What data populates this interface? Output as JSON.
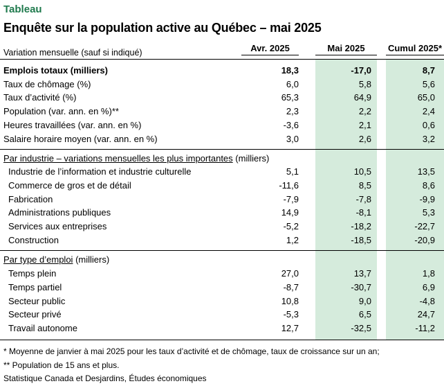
{
  "kicker": "Tableau",
  "title": "Enquête sur la population active au Québec – mai 2025",
  "header": {
    "row_label": "Variation mensuelle (sauf si indiqué)",
    "col1": "Avr. 2025",
    "col2": "Mai 2025",
    "col3": "Cumul 2025*"
  },
  "summary_rows": [
    {
      "label": "Emplois totaux (milliers)",
      "v1": "18,3",
      "v2": "-17,0",
      "v3": "8,7"
    },
    {
      "label": "Taux de chômage (%)",
      "v1": "6,0",
      "v2": "5,8",
      "v3": "5,6"
    },
    {
      "label": "Taux d’activité (%)",
      "v1": "65,3",
      "v2": "64,9",
      "v3": "65,0"
    },
    {
      "label": "Population (var. ann. en %)**",
      "v1": "2,3",
      "v2": "2,2",
      "v3": "2,4"
    },
    {
      "label": "Heures travaillées (var. ann. en %)",
      "v1": "-3,6",
      "v2": "2,1",
      "v3": "0,6"
    },
    {
      "label": "Salaire horaire moyen (var. ann. en %)",
      "v1": "3,0",
      "v2": "2,6",
      "v3": "3,2"
    }
  ],
  "industry": {
    "heading_underlined": "Par industrie – variations mensuelles les plus importantes",
    "heading_rest": " (milliers)",
    "rows": [
      {
        "label": "Industrie de l’information et industrie culturelle",
        "v1": "5,1",
        "v2": "10,5",
        "v3": "13,5"
      },
      {
        "label": "Commerce de gros et de détail",
        "v1": "-11,6",
        "v2": "8,5",
        "v3": "8,6"
      },
      {
        "label": "Fabrication",
        "v1": "-7,9",
        "v2": "-7,8",
        "v3": "-9,9"
      },
      {
        "label": "Administrations publiques",
        "v1": "14,9",
        "v2": "-8,1",
        "v3": "5,3"
      },
      {
        "label": "Services aux entreprises",
        "v1": "-5,2",
        "v2": "-18,2",
        "v3": "-22,7"
      },
      {
        "label": "Construction",
        "v1": "1,2",
        "v2": "-18,5",
        "v3": "-20,9"
      }
    ]
  },
  "type": {
    "heading_underlined": "Par type d’emploi",
    "heading_rest": " (milliers)",
    "rows": [
      {
        "label": "Temps plein",
        "v1": "27,0",
        "v2": "13,7",
        "v3": "1,8"
      },
      {
        "label": "Temps partiel",
        "v1": "-8,7",
        "v2": "-30,7",
        "v3": "6,9"
      },
      {
        "label": "Secteur public",
        "v1": "10,8",
        "v2": "9,0",
        "v3": "-4,8"
      },
      {
        "label": "Secteur privé",
        "v1": "-5,3",
        "v2": "6,5",
        "v3": "24,7"
      },
      {
        "label": "Travail autonome",
        "v1": "12,7",
        "v2": "-32,5",
        "v3": "-11,2"
      }
    ]
  },
  "footnotes": [
    "* Moyenne de janvier à mai 2025 pour les taux d’activité et de chômage, taux de croissance sur un an;",
    "** Population de 15 ans et plus.",
    "Statistique Canada et Desjardins, Études économiques"
  ],
  "colors": {
    "accent": "#1f7a4d",
    "highlight": "#d5ebdc"
  }
}
